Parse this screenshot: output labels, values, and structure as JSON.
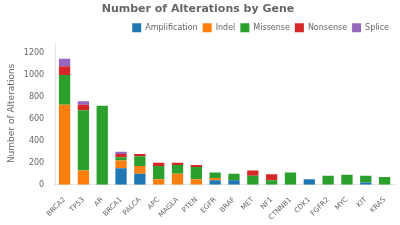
{
  "chart_data": {
    "type": "bar",
    "title": "Number of Alterations by Gene",
    "ylabel": "Number of Alterations",
    "categories": [
      "BRCA2",
      "TP53",
      "AR",
      "BRCA1",
      "PALCA",
      "APC",
      "MAGLA",
      "PTEN",
      "EGFR",
      "BRAF",
      "MET",
      "NF1",
      "CTNNB1",
      "CDK1",
      "FGFR2",
      "MYC",
      "KIT",
      "KRAS"
    ],
    "series": [
      {
        "name": "Amplification",
        "color": "#1f77b4",
        "values": [
          0,
          0,
          0,
          150,
          100,
          0,
          0,
          0,
          40,
          40,
          0,
          0,
          0,
          50,
          0,
          0,
          20,
          0
        ]
      },
      {
        "name": "Indel",
        "color": "#ff7f0e",
        "values": [
          730,
          130,
          0,
          70,
          70,
          50,
          100,
          50,
          20,
          0,
          0,
          0,
          0,
          0,
          0,
          0,
          0,
          0
        ]
      },
      {
        "name": "Missense",
        "color": "#2ca02c",
        "values": [
          270,
          550,
          720,
          30,
          90,
          120,
          80,
          110,
          50,
          60,
          80,
          40,
          110,
          0,
          80,
          90,
          60,
          70
        ]
      },
      {
        "name": "Nonsense",
        "color": "#d62728",
        "values": [
          80,
          50,
          0,
          30,
          20,
          30,
          20,
          20,
          0,
          0,
          50,
          55,
          0,
          0,
          0,
          0,
          0,
          0
        ]
      },
      {
        "name": "Splice",
        "color": "#9467bd",
        "values": [
          70,
          30,
          0,
          20,
          0,
          0,
          0,
          0,
          0,
          0,
          0,
          0,
          0,
          0,
          0,
          0,
          0,
          0
        ]
      }
    ],
    "stacked": true,
    "ylim": [
      0,
      1300
    ],
    "yticks": [
      0,
      200,
      400,
      600,
      800,
      1000,
      1200
    ],
    "grid": false,
    "legend": "upper right"
  }
}
